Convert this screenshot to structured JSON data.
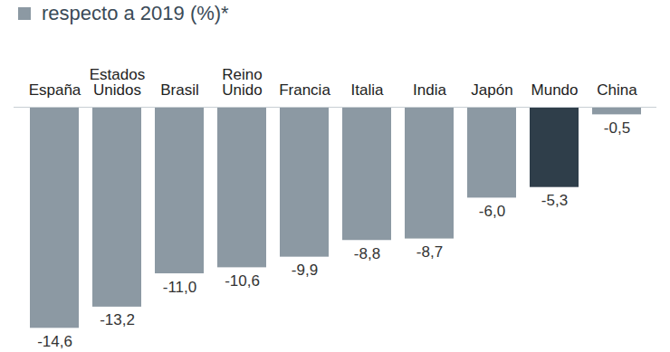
{
  "chart_data": {
    "type": "bar",
    "title": "respecto a 2019 (%)*",
    "categories": [
      "España",
      "Estados Unidos",
      "Brasil",
      "Reino Unido",
      "Francia",
      "Italia",
      "India",
      "Japón",
      "Mundo",
      "China"
    ],
    "values": [
      -14.6,
      -13.2,
      -11.0,
      -10.6,
      -9.9,
      -8.8,
      -8.7,
      -6.0,
      -5.3,
      -0.5
    ],
    "value_labels": [
      "-14,6",
      "-13,2",
      "-11,0",
      "-10,6",
      "-9,9",
      "-8,8",
      "-8,7",
      "-6,0",
      "-5,3",
      "-0,5"
    ],
    "colors": [
      "#8c99a3",
      "#8c99a3",
      "#8c99a3",
      "#8c99a3",
      "#8c99a3",
      "#8c99a3",
      "#8c99a3",
      "#8c99a3",
      "#2f3e4a",
      "#8c99a3"
    ],
    "ylim": [
      -15,
      0
    ],
    "data_labels": true,
    "tick_labels": "x"
  }
}
